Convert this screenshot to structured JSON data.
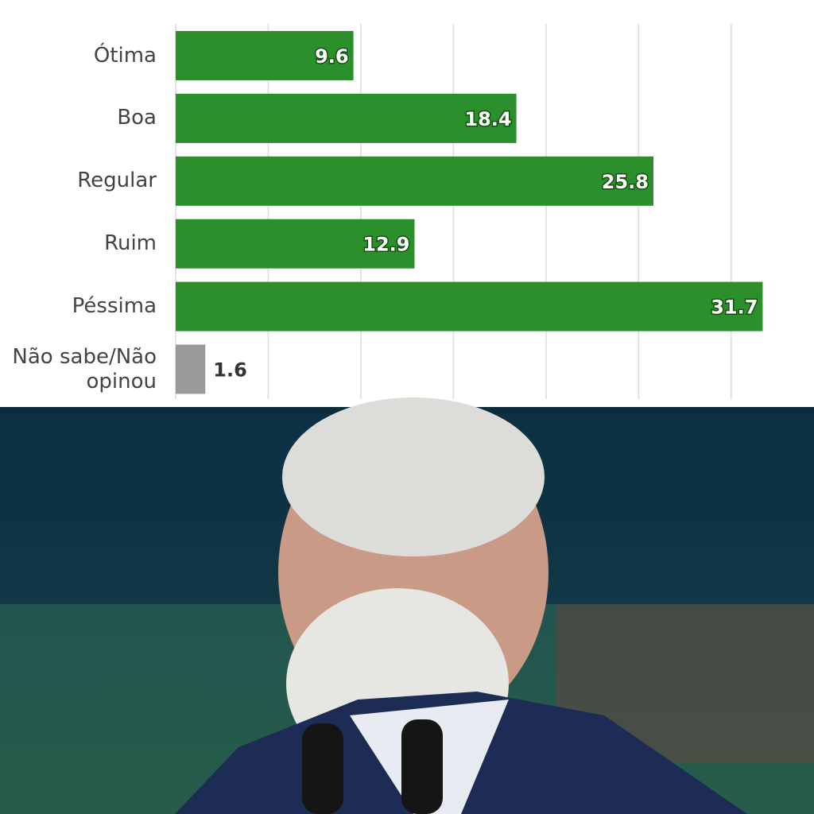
{
  "chart_data": {
    "type": "bar",
    "orientation": "horizontal",
    "categories": [
      "Ótima",
      "Boa",
      "Regular",
      "Ruim",
      "Péssima",
      "Não sabe/Não opinou"
    ],
    "values": [
      9.6,
      18.4,
      25.8,
      12.9,
      31.7,
      1.6
    ],
    "colors": [
      "#2b8f2b",
      "#2b8f2b",
      "#2b8f2b",
      "#2b8f2b",
      "#2b8f2b",
      "#9a9a9a"
    ],
    "xlim": [
      0,
      34
    ],
    "xticks": [
      0,
      5,
      10,
      15,
      20,
      25,
      30
    ],
    "grid": true
  }
}
